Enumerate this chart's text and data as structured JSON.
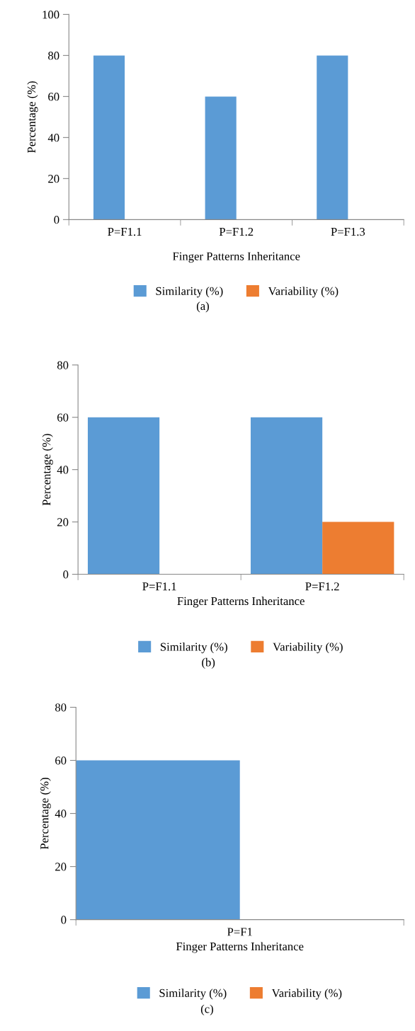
{
  "chart_data": [
    {
      "type": "bar",
      "categories": [
        "P=F1.1",
        "P=F1.2",
        "P=F1.3"
      ],
      "xlabel": "Finger Patterns Inheritance",
      "ylabel": "Percentage (%)",
      "series": [
        {
          "name": "Similarity (%)",
          "color": "#5b9bd5",
          "values": [
            80,
            60,
            80
          ]
        },
        {
          "name": "Variability (%)",
          "color": "#ed7d31",
          "values": [
            0,
            0,
            0
          ]
        }
      ],
      "ylim": [
        0,
        100
      ],
      "yticks": [
        0,
        20,
        40,
        60,
        80,
        100
      ],
      "legend": "bottom",
      "grid": false,
      "annotations": [
        "(a)"
      ]
    },
    {
      "type": "bar",
      "categories": [
        "P=F1.1",
        "P=F1.2"
      ],
      "xlabel": "Finger Patterns Inheritance",
      "ylabel": "Percentage (%)",
      "series": [
        {
          "name": "Similarity (%)",
          "color": "#5b9bd5",
          "values": [
            60,
            60
          ]
        },
        {
          "name": "Variability (%)",
          "color": "#ed7d31",
          "values": [
            0,
            20
          ]
        }
      ],
      "ylim": [
        0,
        80
      ],
      "yticks": [
        0,
        20,
        40,
        60,
        80
      ],
      "legend": "bottom",
      "grid": false,
      "annotations": [
        "(b)"
      ]
    },
    {
      "type": "bar",
      "categories": [
        "P=F1"
      ],
      "xlabel": "Finger Patterns Inheritance",
      "ylabel": "Percentage (%)",
      "series": [
        {
          "name": "Similarity (%)",
          "color": "#5b9bd5",
          "values": [
            60
          ]
        },
        {
          "name": "Variability (%)",
          "color": "#ed7d31",
          "values": [
            0
          ]
        }
      ],
      "ylim": [
        0,
        80
      ],
      "yticks": [
        0,
        20,
        40,
        60,
        80
      ],
      "legend": "bottom",
      "grid": false,
      "annotations": [
        "(c)"
      ]
    }
  ]
}
